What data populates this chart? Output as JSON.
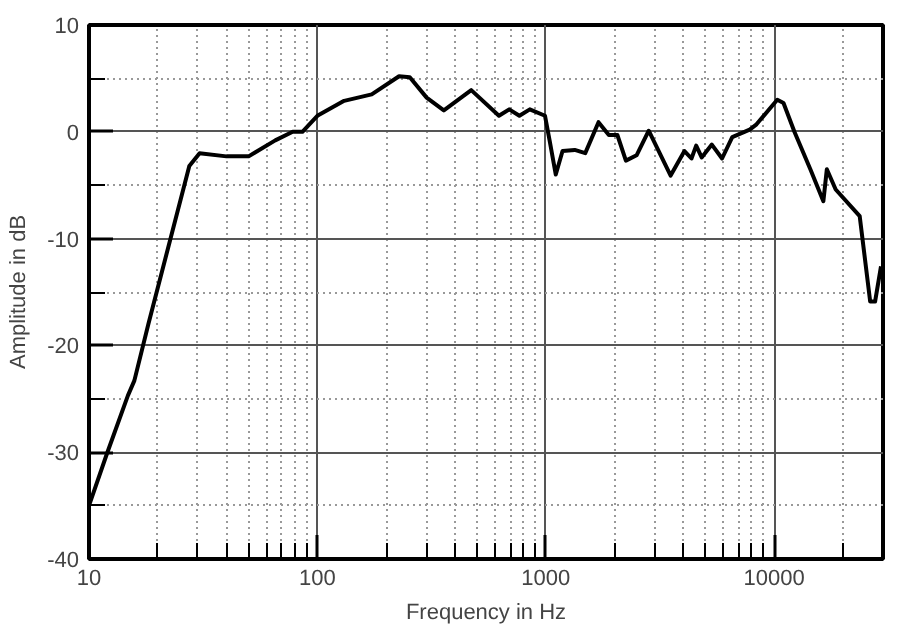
{
  "chart_data": {
    "type": "line",
    "xlabel": "Frequency in Hz",
    "ylabel": "Amplitude in dB",
    "log": "x",
    "grid": true,
    "marker": "none",
    "line_style": "solid",
    "xlim": [
      10,
      30000
    ],
    "ylim": [
      -40,
      10
    ],
    "xticks": [
      10,
      100,
      1000,
      10000
    ],
    "yticks": [
      -40,
      -30,
      -20,
      -10,
      0,
      10
    ],
    "x": [
      10,
      12,
      14.8,
      15.8,
      18.2,
      27.5,
      30.5,
      40,
      50,
      65.4,
      78,
      86,
      100,
      131,
      173,
      228,
      254,
      301,
      358,
      472,
      624,
      692,
      767,
      852,
      993,
      1040,
      1107,
      1185,
      1340,
      1490,
      1703,
      1890,
      2060,
      2245,
      2500,
      2826,
      3525,
      4052,
      4350,
      4560,
      4820,
      5340,
      5920,
      6560,
      7820,
      8380,
      10330,
      11000,
      12280,
      14420,
      16440,
      17030,
      18620,
      23720,
      26360,
      27700,
      29400
    ],
    "series": [
      {
        "color": "#000000",
        "values": [
          -35,
          -30.1,
          -24.7,
          -23.3,
          -18,
          -3.2,
          -2,
          -2.3,
          -2.3,
          -0.8,
          0,
          0,
          1.5,
          2.9,
          3.5,
          5.2,
          5.1,
          3.2,
          2,
          3.9,
          1.5,
          2.1,
          1.5,
          2.1,
          1.5,
          -0.8,
          -4,
          -1.8,
          -1.7,
          -2,
          0.9,
          -0.3,
          -0.3,
          -2.7,
          -2.2,
          0.1,
          -4.1,
          -1.8,
          -2.5,
          -1.3,
          -2.4,
          -1.2,
          -2.5,
          -0.5,
          0.2,
          0.7,
          3,
          2.7,
          0,
          -3.5,
          -6.5,
          -3.5,
          -5.4,
          -7.9,
          -15.9,
          -15.9,
          -12.6
        ]
      }
    ]
  }
}
